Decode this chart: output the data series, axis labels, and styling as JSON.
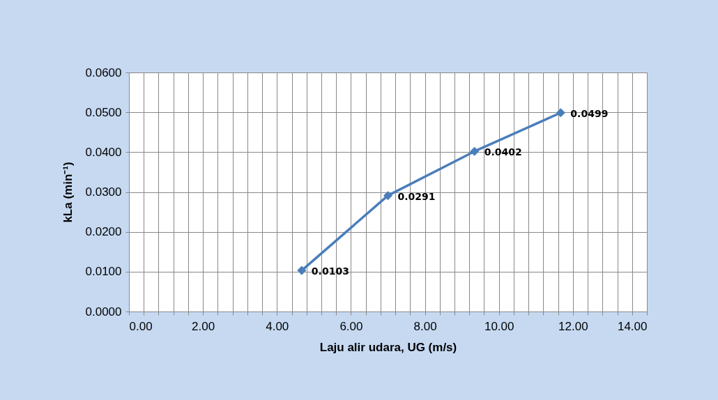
{
  "chart_data": {
    "type": "line",
    "xlabel": "Laju alir udara, UG (m/s)",
    "ylabel": "kLa (min⁻¹)",
    "x": [
      4.67,
      7.0,
      9.34,
      11.67
    ],
    "series": [
      {
        "color": "#4a7ebb",
        "values": [
          0.0103,
          0.0291,
          0.0402,
          0.0499
        ],
        "value_labels": [
          "0.0103",
          "0.0291",
          "0.0402",
          "0.0499"
        ]
      }
    ],
    "xlim": [
      0,
      14
    ],
    "ylim": [
      0,
      0.06
    ],
    "xticks": [
      {
        "value": 0,
        "label": "0.00"
      },
      {
        "value": 0.4,
        "label": null
      },
      {
        "value": 0.8,
        "label": null
      },
      {
        "value": 1.2,
        "label": null
      },
      {
        "value": 1.6,
        "label": null
      },
      {
        "value": 2,
        "label": "2.00"
      },
      {
        "value": 2.4,
        "label": null
      },
      {
        "value": 2.8,
        "label": null
      },
      {
        "value": 3.2,
        "label": null
      },
      {
        "value": 3.6,
        "label": null
      },
      {
        "value": 4,
        "label": "4.00"
      },
      {
        "value": 4.4,
        "label": null
      },
      {
        "value": 4.8,
        "label": null
      },
      {
        "value": 5.2,
        "label": null
      },
      {
        "value": 5.6,
        "label": null
      },
      {
        "value": 6,
        "label": "6.00"
      },
      {
        "value": 6.4,
        "label": null
      },
      {
        "value": 6.8,
        "label": null
      },
      {
        "value": 7.2,
        "label": null
      },
      {
        "value": 7.6,
        "label": null
      },
      {
        "value": 8,
        "label": "8.00"
      },
      {
        "value": 8.4,
        "label": null
      },
      {
        "value": 8.8,
        "label": null
      },
      {
        "value": 9.2,
        "label": null
      },
      {
        "value": 9.6,
        "label": null
      },
      {
        "value": 10,
        "label": "10.00"
      },
      {
        "value": 10.4,
        "label": null
      },
      {
        "value": 10.8,
        "label": null
      },
      {
        "value": 11.2,
        "label": null
      },
      {
        "value": 11.6,
        "label": null
      },
      {
        "value": 12,
        "label": "12.00"
      },
      {
        "value": 12.4,
        "label": null
      },
      {
        "value": 12.8,
        "label": null
      },
      {
        "value": 13.2,
        "label": null
      },
      {
        "value": 13.6,
        "label": null
      },
      {
        "value": 14,
        "label": "14.00"
      }
    ],
    "yticks": [
      {
        "value": 0,
        "label": "0.0000"
      },
      {
        "value": 0.01,
        "label": "0.0100"
      },
      {
        "value": 0.02,
        "label": "0.0200"
      },
      {
        "value": 0.03,
        "label": "0.0300"
      },
      {
        "value": 0.04,
        "label": "0.0400"
      },
      {
        "value": 0.05,
        "label": "0.0500"
      },
      {
        "value": 0.06,
        "label": "0.0600"
      }
    ],
    "grid": true,
    "marker": "diamond",
    "line_style": "solid"
  }
}
